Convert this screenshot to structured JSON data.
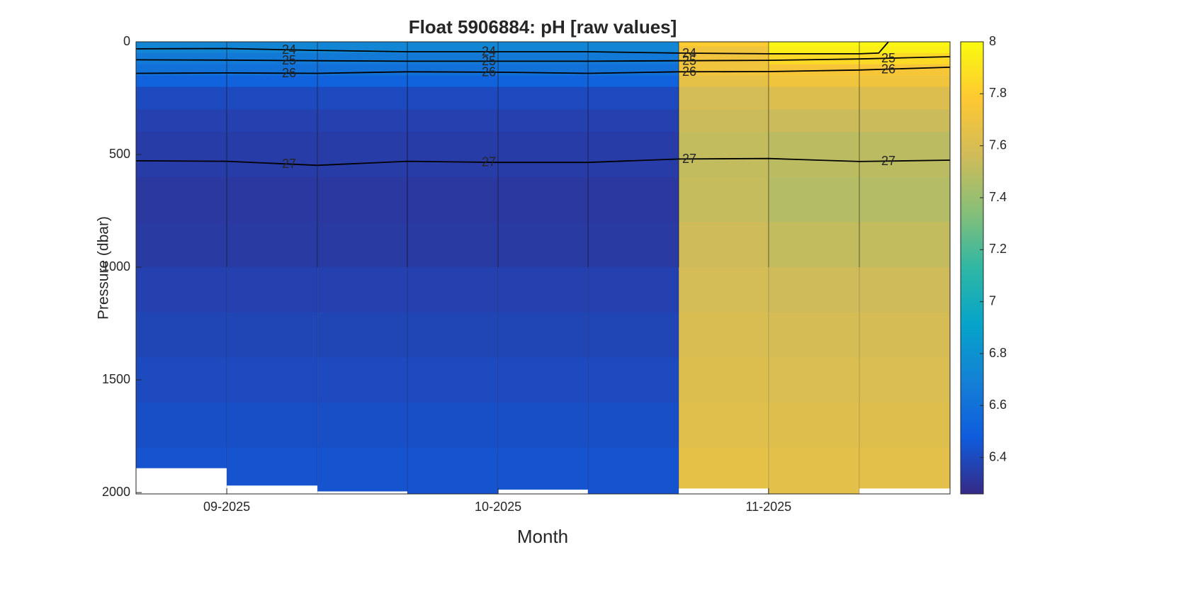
{
  "chart_data": {
    "type": "section",
    "title": "Float 5906884: pH  [raw values]",
    "xlabel": "Month",
    "ylabel": "Pressure (dbar)",
    "xlim": [
      -10.3,
      82.1
    ],
    "xticks": [
      {
        "value": 0,
        "label": "09-2025"
      },
      {
        "value": 30.8,
        "label": "10-2025"
      },
      {
        "value": 61.5,
        "label": "11-2025"
      }
    ],
    "ylim": [
      0,
      2006
    ],
    "yticks": [
      0,
      500,
      1000,
      1500,
      2000
    ],
    "y_reversed": true,
    "x_edges": [
      -10.3,
      0,
      10.3,
      20.5,
      30.8,
      41,
      51.3,
      61.5,
      71.8,
      82.1
    ],
    "pressure_levels": [
      0,
      20,
      50,
      100,
      150,
      200,
      300,
      400,
      600,
      800,
      1000,
      1200,
      1400,
      1600,
      1800
    ],
    "max_pressure": [
      1890,
      1967,
      1993,
      2005,
      1985,
      2005,
      1980,
      2005,
      1980
    ],
    "z": [
      [
        6.72,
        6.72,
        6.65,
        6.6,
        6.52,
        6.4,
        6.36,
        6.34,
        6.32,
        6.33,
        6.36,
        6.38,
        6.4,
        6.42,
        6.44
      ],
      [
        6.72,
        6.72,
        6.65,
        6.6,
        6.52,
        6.4,
        6.36,
        6.34,
        6.32,
        6.33,
        6.36,
        6.38,
        6.4,
        6.42,
        6.44
      ],
      [
        6.72,
        6.72,
        6.65,
        6.6,
        6.52,
        6.4,
        6.36,
        6.34,
        6.32,
        6.33,
        6.36,
        6.38,
        6.4,
        6.42,
        6.44
      ],
      [
        6.72,
        6.72,
        6.65,
        6.6,
        6.52,
        6.4,
        6.36,
        6.34,
        6.32,
        6.33,
        6.36,
        6.38,
        6.4,
        6.42,
        6.44
      ],
      [
        6.72,
        6.72,
        6.65,
        6.6,
        6.52,
        6.4,
        6.36,
        6.34,
        6.32,
        6.33,
        6.36,
        6.38,
        6.4,
        6.42,
        6.44
      ],
      [
        6.72,
        6.72,
        6.65,
        6.6,
        6.52,
        6.4,
        6.36,
        6.34,
        6.32,
        6.33,
        6.36,
        6.38,
        6.4,
        6.42,
        6.44
      ],
      [
        7.8,
        7.72,
        7.72,
        7.72,
        7.66,
        7.58,
        7.55,
        7.52,
        7.53,
        7.56,
        7.58,
        7.6,
        7.62,
        7.64,
        7.66
      ],
      [
        7.98,
        7.95,
        7.85,
        7.75,
        7.72,
        7.62,
        7.55,
        7.5,
        7.48,
        7.52,
        7.56,
        7.59,
        7.61,
        7.63,
        7.65
      ],
      [
        7.98,
        7.95,
        7.85,
        7.75,
        7.72,
        7.62,
        7.55,
        7.5,
        7.48,
        7.52,
        7.56,
        7.59,
        7.61,
        7.63,
        7.65
      ]
    ],
    "clim": [
      6.26,
      8.0
    ],
    "cticks": [
      6.4,
      6.6,
      6.8,
      7,
      7.2,
      7.4,
      7.6,
      7.8,
      8
    ],
    "colormap": [
      "#352a87",
      "#0f5cdd",
      "#1481d6",
      "#06a4ca",
      "#2eb7a4",
      "#87bf77",
      "#d1bb59",
      "#fec832",
      "#f9fb0e"
    ],
    "contours": [
      {
        "level": 24,
        "x": [
          -10.3,
          0,
          10.3,
          20.5,
          30.8,
          41,
          51.3,
          61.5,
          71.8,
          74.0,
          75.1
        ],
        "y": [
          31,
          30,
          38,
          44,
          44,
          44,
          50,
          53,
          53,
          50,
          0
        ]
      },
      {
        "level": 25,
        "x": [
          -10.3,
          0,
          10.3,
          20.5,
          30.8,
          41,
          51.3,
          61.5,
          71.8,
          82.1
        ],
        "y": [
          80,
          81,
          84,
          86,
          86,
          86,
          84,
          82,
          76,
          66
        ]
      },
      {
        "level": 26,
        "x": [
          -10.3,
          0,
          10.3,
          20.5,
          30.8,
          41,
          51.3,
          61.5,
          71.8,
          82.1
        ],
        "y": [
          140,
          138,
          140,
          133,
          135,
          140,
          133,
          132,
          125,
          113
        ]
      },
      {
        "level": 27,
        "x": [
          -10.3,
          0,
          10.3,
          20.5,
          30.8,
          41,
          51.3,
          61.5,
          71.8,
          82.1
        ],
        "y": [
          528,
          530,
          548,
          530,
          535,
          535,
          520,
          518,
          531,
          525
        ]
      }
    ]
  }
}
